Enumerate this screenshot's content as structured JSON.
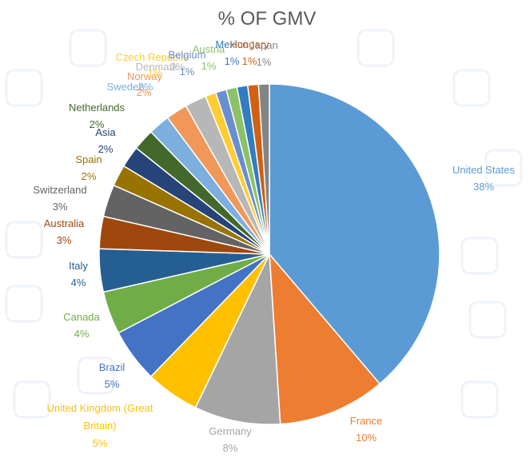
{
  "chart_data": {
    "type": "pie",
    "title": "% OF GMV",
    "start_angle_deg": 0,
    "direction": "clockwise",
    "slices": [
      {
        "label": "United States",
        "value": 38,
        "pct": "38%",
        "color": "#5B9BD5"
      },
      {
        "label": "France",
        "value": 10,
        "pct": "10%",
        "color": "#ED7D31"
      },
      {
        "label": "Germany",
        "value": 8,
        "pct": "8%",
        "color": "#A5A5A5"
      },
      {
        "label": "United Kingdom (Great Britain)",
        "value": 5,
        "pct": "5%",
        "color": "#FFC000"
      },
      {
        "label": "Brazil",
        "value": 5,
        "pct": "5%",
        "color": "#4472C4"
      },
      {
        "label": "Canada",
        "value": 4,
        "pct": "4%",
        "color": "#70AD47"
      },
      {
        "label": "Italy",
        "value": 4,
        "pct": "4%",
        "color": "#255E91"
      },
      {
        "label": "Australia",
        "value": 3,
        "pct": "3%",
        "color": "#9E480E"
      },
      {
        "label": "Switzerland",
        "value": 3,
        "pct": "3%",
        "color": "#636363"
      },
      {
        "label": "Spain",
        "value": 2,
        "pct": "2%",
        "color": "#997300"
      },
      {
        "label": "Asia",
        "value": 2,
        "pct": "2%",
        "color": "#264478"
      },
      {
        "label": "Netherlands",
        "value": 2,
        "pct": "2%",
        "color": "#43682B"
      },
      {
        "label": "Sweden",
        "value": 2,
        "pct": "2%",
        "color": "#7CAFDD"
      },
      {
        "label": "Norway",
        "value": 2,
        "pct": "2%",
        "color": "#F1975A"
      },
      {
        "label": "Denmark",
        "value": 2,
        "pct": "2%",
        "color": "#B7B7B7"
      },
      {
        "label": "Czech Republic",
        "value": 1,
        "pct": "1%",
        "color": "#FFCD33"
      },
      {
        "label": "Belgium",
        "value": 1,
        "pct": "1%",
        "color": "#698ED0"
      },
      {
        "label": "Austria",
        "value": 1,
        "pct": "1%",
        "color": "#8CC168"
      },
      {
        "label": "Mexico",
        "value": 1,
        "pct": "1%",
        "color": "#327DC2"
      },
      {
        "label": "Hungary",
        "value": 1,
        "pct": "1%",
        "color": "#D26012"
      },
      {
        "label": "Japan",
        "value": 1,
        "pct": "1%",
        "color": "#848484"
      }
    ]
  }
}
